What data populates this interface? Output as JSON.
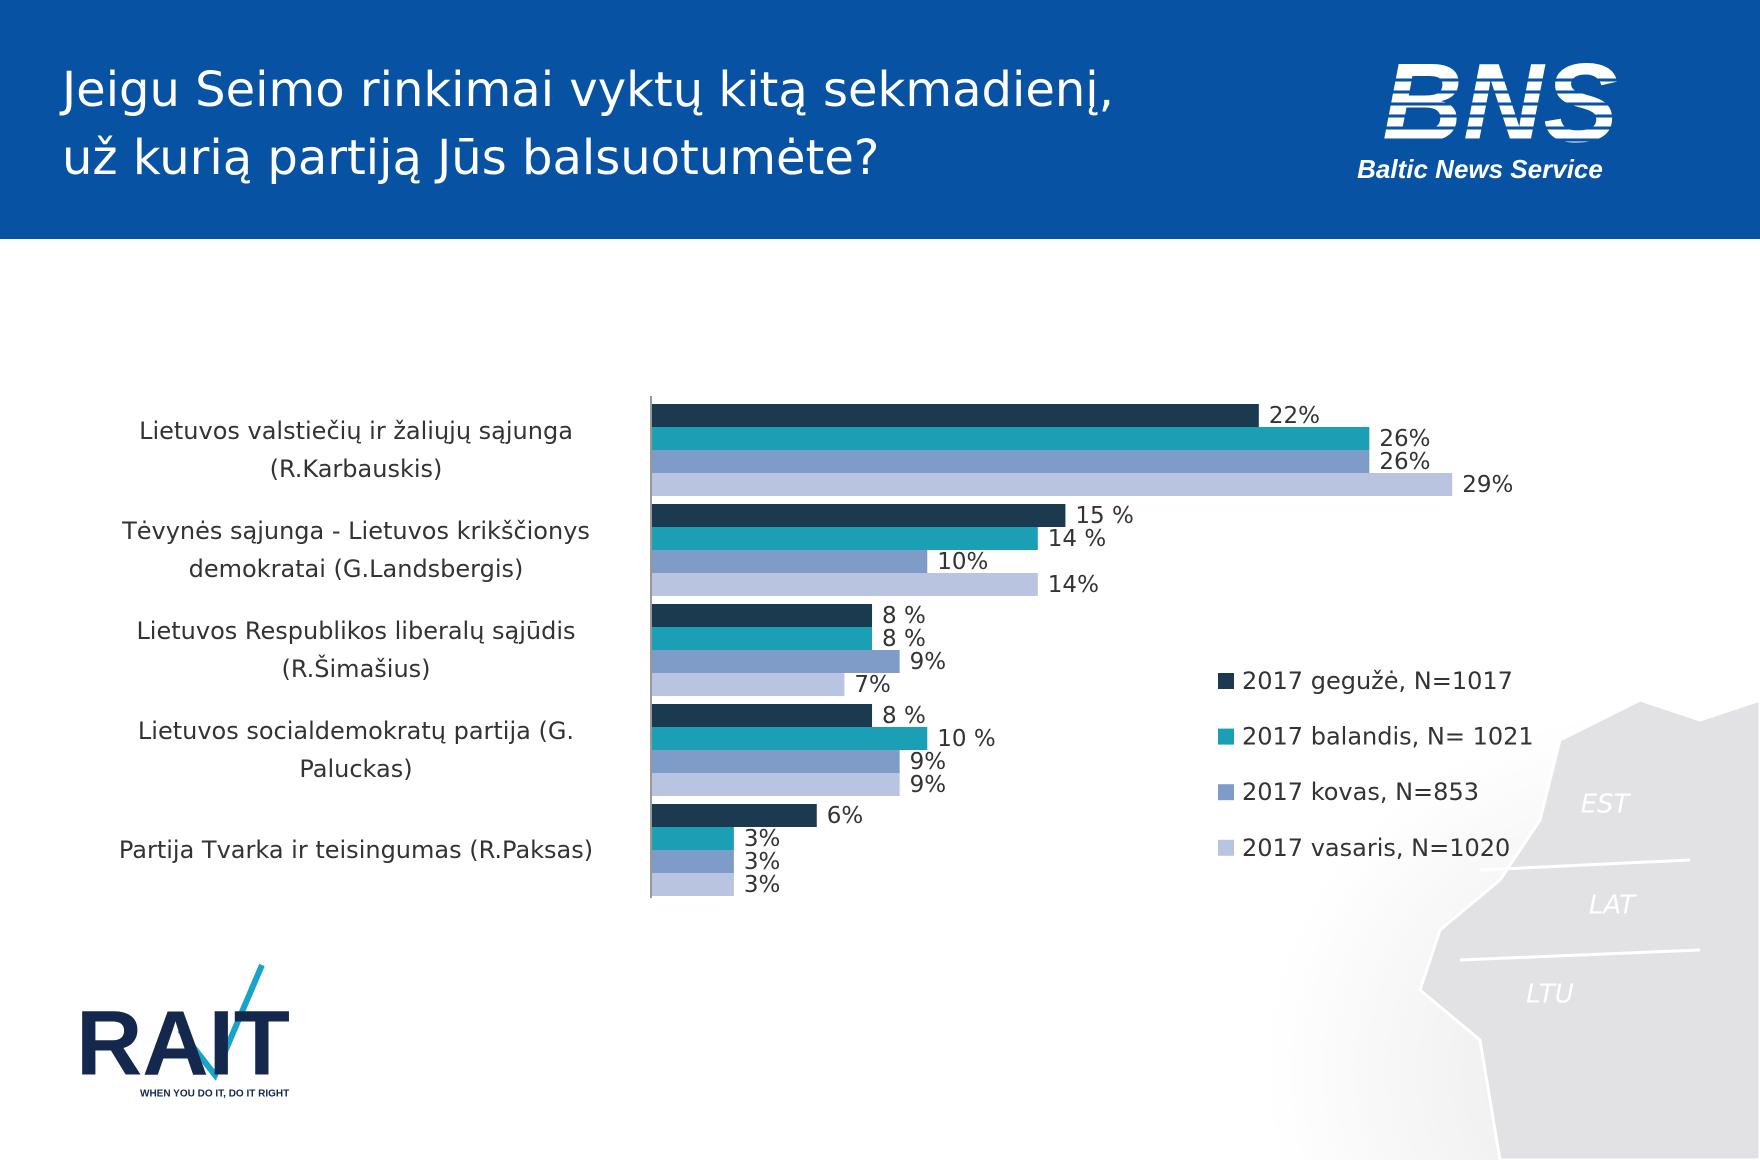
{
  "header": {
    "title": "Jeigu Seimo rinkimai vyktų kitą sekmadienį,\nuž kurią partiją Jūs balsuotumėte?",
    "logo": "BNS",
    "logo_caption": "Baltic News Service"
  },
  "chart_data": {
    "type": "hbar",
    "categories": [
      "Lietuvos valstiečių ir žaliųjų sąjunga\n(R.Karbauskis)",
      "Tėvynės sąjunga - Lietuvos krikščionys\ndemokratai (G.Landsbergis)",
      "Lietuvos Respublikos liberalų sąjūdis\n(R.Šimašius)",
      "Lietuvos socialdemokratų partija (G.\nPaluckas)",
      "Partija Tvarka ir teisingumas (R.Paksas)"
    ],
    "series": [
      {
        "name": "2017 gegužė, N=1017",
        "color": "#1b3a4f",
        "values": [
          22,
          15,
          8,
          8,
          6
        ],
        "value_labels": [
          "22%",
          "15 %",
          "8 %",
          "8 %",
          "6%"
        ]
      },
      {
        "name": "2017 balandis, N= 1021",
        "color": "#1a9fb4",
        "values": [
          26,
          14,
          8,
          10,
          3
        ],
        "value_labels": [
          "26%",
          "14 %",
          "8 %",
          "10 %",
          "3%"
        ]
      },
      {
        "name": "2017 kovas, N=853",
        "color": "#7f9cc8",
        "values": [
          26,
          10,
          9,
          9,
          3
        ],
        "value_labels": [
          "26%",
          "10%",
          "9%",
          "9%",
          "3%"
        ]
      },
      {
        "name": "2017 vasaris, N=1020",
        "color": "#b9c4e0",
        "values": [
          29,
          14,
          7,
          9,
          3
        ],
        "value_labels": [
          "29%",
          "14%",
          "7%",
          "9%",
          "3%"
        ]
      }
    ],
    "xlim": [
      0,
      35
    ],
    "legend": "right"
  },
  "map_labels": [
    "EST",
    "LAT",
    "LTU"
  ],
  "footer": {
    "logo": "RAIT",
    "tagline": "WHEN YOU DO IT, DO IT RIGHT"
  }
}
